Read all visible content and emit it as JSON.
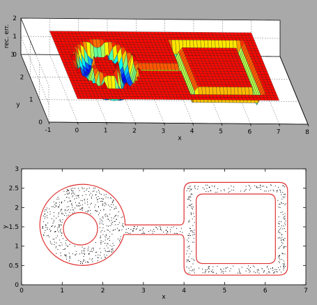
{
  "chart_data": [
    {
      "type": "surface3d",
      "xlabel": "x",
      "ylabel": "y",
      "zlabel": "rec. err.",
      "x_ticks": [
        "-1",
        "0",
        "1",
        "2",
        "3",
        "4",
        "5",
        "6",
        "7",
        "8"
      ],
      "y_ticks": [
        "0",
        "1",
        "2",
        "3"
      ],
      "z_ticks": [
        "0",
        "1",
        "2"
      ],
      "xlim": [
        -1,
        8
      ],
      "ylim": [
        0,
        3
      ],
      "zlim": [
        0,
        2
      ],
      "colormap": "jet",
      "grid": true,
      "description_of_surface": "reconstruction error over the domain; low (blue) inside a disk-with-hole connected by a channel to a rounded square, high (red) along the domain boundary"
    },
    {
      "type": "scatter",
      "xlabel": "x",
      "ylabel": "y",
      "x_ticks": [
        "0",
        "1",
        "2",
        "3",
        "4",
        "5",
        "6",
        "7"
      ],
      "y_ticks": [
        "0",
        "0.5",
        "1",
        "1.5",
        "2",
        "2.5",
        "3"
      ],
      "xlim": [
        0,
        7
      ],
      "ylim": [
        0,
        3
      ],
      "boundary_color": "#e03030",
      "point_color": "#000000",
      "geometry": {
        "left_disk": {
          "cx": 1.5,
          "cy": 1.55,
          "r": 1.05
        },
        "inner_hole": {
          "cx": 1.45,
          "cy": 1.45,
          "r": 0.42
        },
        "channel": {
          "x0": 2.45,
          "x1": 4.2,
          "y0": 1.3,
          "y1": 1.55
        },
        "outer_square": {
          "x0": 4.0,
          "x1": 6.55,
          "y0": 0.25,
          "y1": 2.65
        },
        "inner_square": {
          "x0": 4.3,
          "x1": 6.25,
          "y0": 0.55,
          "y1": 2.35
        }
      }
    }
  ]
}
